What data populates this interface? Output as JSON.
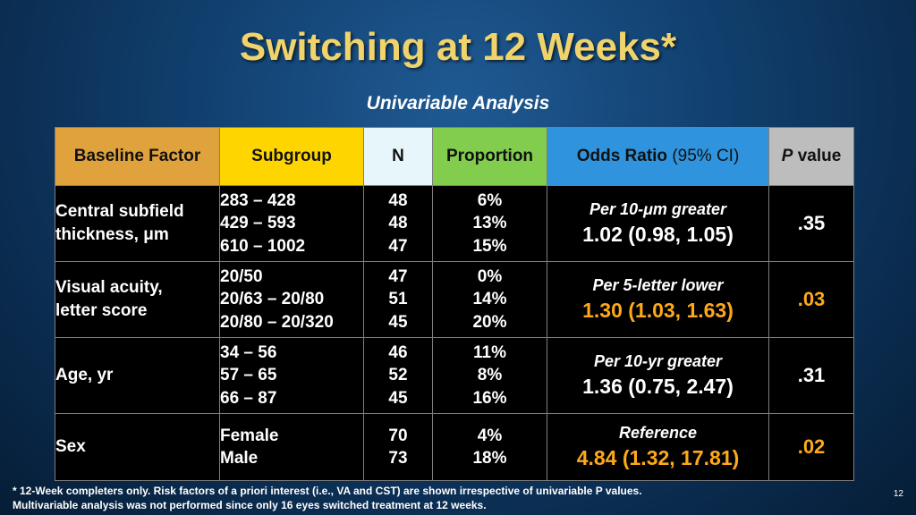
{
  "slide": {
    "title": "Switching at 12 Weeks*",
    "subtitle": "Univariable Analysis",
    "page_number": "12",
    "footnote_line1": "* 12-Week completers only. Risk factors of a priori interest (i.e., VA and CST) are shown irrespective of univariable P values.",
    "footnote_line2": "Multivariable analysis was not performed since only 16 eyes switched treatment at 12 weeks."
  },
  "colors": {
    "title": "#f1d36b",
    "highlight": "#ffa91a",
    "header_baseline_factor": "#e0a23c",
    "header_subgroup": "#ffd500",
    "header_n": "#e6f6fb",
    "header_proportion": "#82cc4e",
    "header_odds_ratio": "#2f93dd",
    "header_p_value": "#bdbdbd"
  },
  "table": {
    "headers": {
      "factor": "Baseline Factor",
      "subgroup": "Subgroup",
      "n": "N",
      "proportion": "Proportion",
      "odds_ratio_main": "Odds Ratio",
      "odds_ratio_ci": "(95% CI)",
      "p_italic": "P",
      "p_rest": "value"
    },
    "rows": [
      {
        "factor_line1": "Central subfield",
        "factor_line2": "thickness, μm",
        "subgroups": [
          "283 – 428",
          "429 – 593",
          "610 – 1002"
        ],
        "n": [
          "48",
          "48",
          "47"
        ],
        "proportions": [
          "6%",
          "13%",
          "15%"
        ],
        "or_label": "Per 10-μm greater",
        "or_value": "1.02 (0.98, 1.05)",
        "p": ".35",
        "highlight": false
      },
      {
        "factor_line1": "Visual acuity,",
        "factor_line2": "letter score",
        "subgroups": [
          "20/50",
          "20/63 – 20/80",
          "20/80 – 20/320"
        ],
        "n": [
          "47",
          "51",
          "45"
        ],
        "proportions": [
          "0%",
          "14%",
          "20%"
        ],
        "or_label": "Per 5-letter lower",
        "or_value": "1.30 (1.03, 1.63)",
        "p": ".03",
        "highlight": true
      },
      {
        "factor_line1": "Age, yr",
        "factor_line2": "",
        "subgroups": [
          "34 – 56",
          "57 – 65",
          "66 – 87"
        ],
        "n": [
          "46",
          "52",
          "45"
        ],
        "proportions": [
          "11%",
          "8%",
          "16%"
        ],
        "or_label": "Per 10-yr greater",
        "or_value": "1.36 (0.75, 2.47)",
        "p": ".31",
        "highlight": false
      },
      {
        "factor_line1": "Sex",
        "factor_line2": "",
        "subgroups": [
          "Female",
          "Male"
        ],
        "n": [
          "70",
          "73"
        ],
        "proportions": [
          "4%",
          "18%"
        ],
        "or_label": "Reference",
        "or_value": "4.84 (1.32, 17.81)",
        "p": ".02",
        "highlight": true
      }
    ]
  }
}
